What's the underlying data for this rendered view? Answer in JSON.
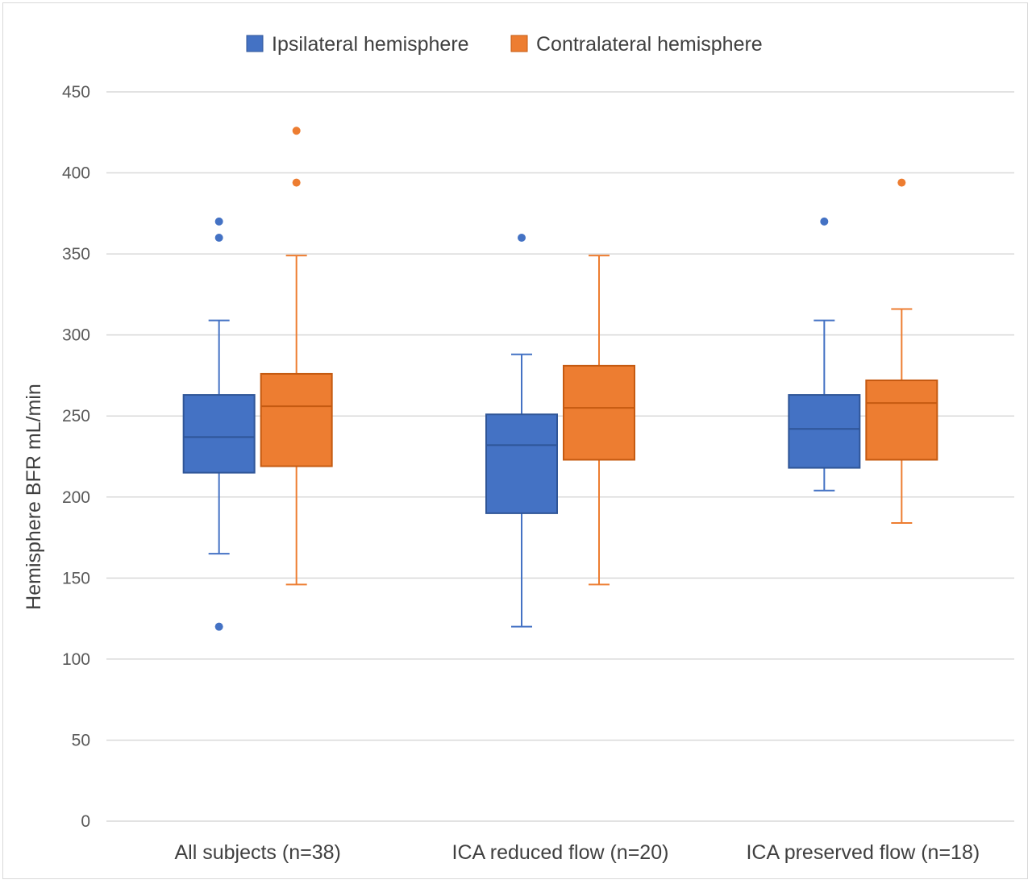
{
  "chart_data": {
    "type": "box",
    "title": "",
    "xlabel": "",
    "ylabel": "Hemisphere BFR mL/min",
    "ylim": [
      0,
      450
    ],
    "yticks": [
      0,
      50,
      100,
      150,
      200,
      250,
      300,
      350,
      400,
      450
    ],
    "grid": "horizontal",
    "legend_position": "top",
    "categories": [
      "All subjects (n=38)",
      "ICA reduced flow (n=20)",
      "ICA preserved flow (n=18)"
    ],
    "series": [
      {
        "name": "Ipsilateral hemisphere",
        "color": "#4472c4",
        "stroke": "#2f5597",
        "boxes": [
          {
            "whisker_low": 165,
            "q1": 215,
            "median": 237,
            "q3": 263,
            "whisker_high": 309,
            "outliers": [
              370,
              360,
              120
            ]
          },
          {
            "whisker_low": 120,
            "q1": 190,
            "median": 232,
            "q3": 251,
            "whisker_high": 288,
            "outliers": [
              360
            ]
          },
          {
            "whisker_low": 204,
            "q1": 218,
            "median": 242,
            "q3": 263,
            "whisker_high": 309,
            "outliers": [
              370
            ]
          }
        ]
      },
      {
        "name": "Contralateral hemisphere",
        "color": "#ed7d31",
        "stroke": "#c55a11",
        "boxes": [
          {
            "whisker_low": 146,
            "q1": 219,
            "median": 256,
            "q3": 276,
            "whisker_high": 349,
            "outliers": [
              426,
              394
            ]
          },
          {
            "whisker_low": 146,
            "q1": 223,
            "median": 255,
            "q3": 281,
            "whisker_high": 349,
            "outliers": []
          },
          {
            "whisker_low": 184,
            "q1": 223,
            "median": 258,
            "q3": 272,
            "whisker_high": 316,
            "outliers": [
              394
            ]
          }
        ]
      }
    ]
  }
}
